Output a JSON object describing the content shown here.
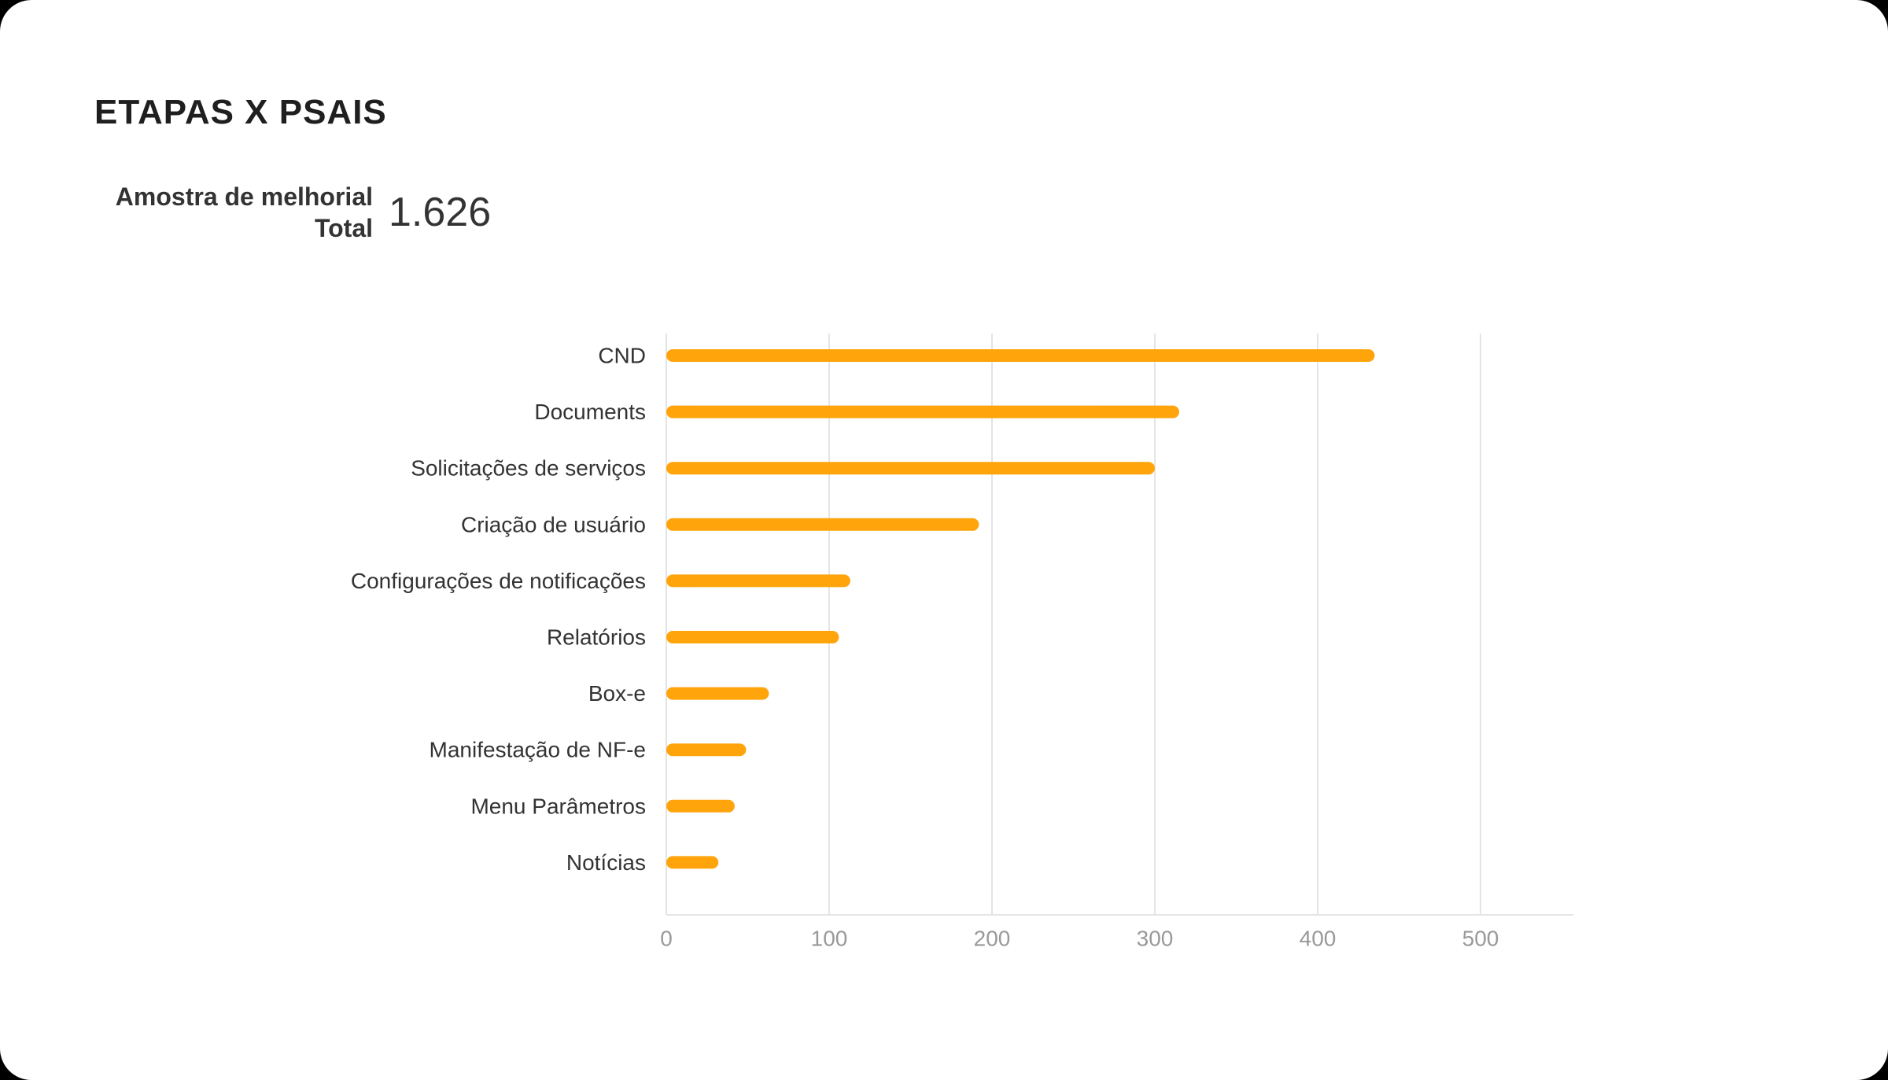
{
  "title": "ETAPAS X PSAIS",
  "kpi": {
    "label": "Amostra de melhorial\nTotal",
    "value": "1.626"
  },
  "chart_data": {
    "type": "bar",
    "orientation": "horizontal",
    "categories": [
      "CND",
      "Documents",
      "Solicitações de serviços",
      "Criação de usuário",
      "Configurações de notificações",
      "Relatórios",
      "Box-e",
      "Manifestação de NF-e",
      "Menu Parâmetros",
      "Notícias"
    ],
    "values": [
      435,
      315,
      300,
      192,
      113,
      106,
      63,
      49,
      42,
      32
    ],
    "xlim": [
      0,
      557
    ],
    "xticks": [
      0,
      100,
      200,
      300,
      400,
      500
    ],
    "xtick_labels": [
      "0",
      "100",
      "200",
      "300",
      "400",
      "500"
    ],
    "grid": "vertical",
    "bar_color": "#FFA40A",
    "grid_color": "#E4E4E4",
    "label_color": "#333333",
    "tick_color": "#999999"
  }
}
